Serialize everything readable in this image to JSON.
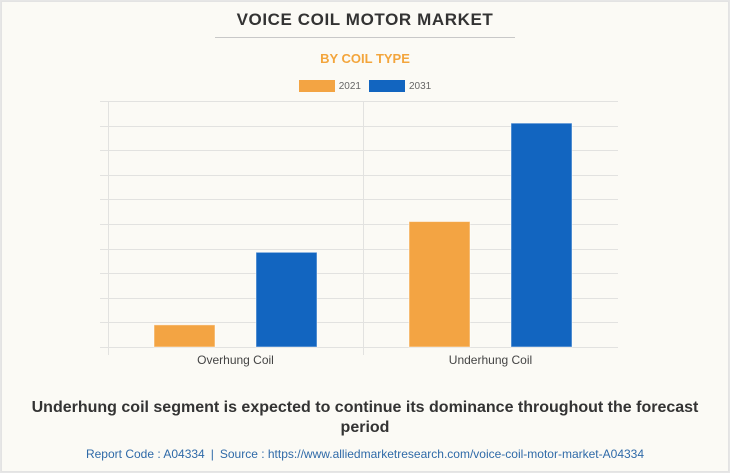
{
  "header": {
    "title": "VOICE COIL MOTOR MARKET",
    "subtitle": "BY COIL TYPE"
  },
  "colors": {
    "series_2021": "#f3a443",
    "series_2031": "#1265c0",
    "subtitle": "#f3a53c",
    "gridline": "#e2e2e0",
    "axis_label": "#444444"
  },
  "chart_data": {
    "type": "bar",
    "title": "VOICE COIL MOTOR MARKET",
    "subtitle": "BY COIL TYPE",
    "categories": [
      "Overhung Coil",
      "Underhung Coil"
    ],
    "series": [
      {
        "name": "2021",
        "values": [
          0.9,
          5.1
        ]
      },
      {
        "name": "2031",
        "values": [
          3.85,
          9.1
        ]
      }
    ],
    "xlabel": "",
    "ylabel": "",
    "ylim": [
      0,
      10
    ],
    "y_gridlines": 10,
    "y_tick_labels_shown": false,
    "grid": true,
    "legend": "top-center"
  },
  "caption": "Underhung coil segment is expected to continue its dominance throughout the forecast period",
  "footer": {
    "report_code": "Report Code : A04334",
    "separator": "|",
    "source": "Source : https://www.alliedmarketresearch.com/voice-coil-motor-market-A04334"
  }
}
